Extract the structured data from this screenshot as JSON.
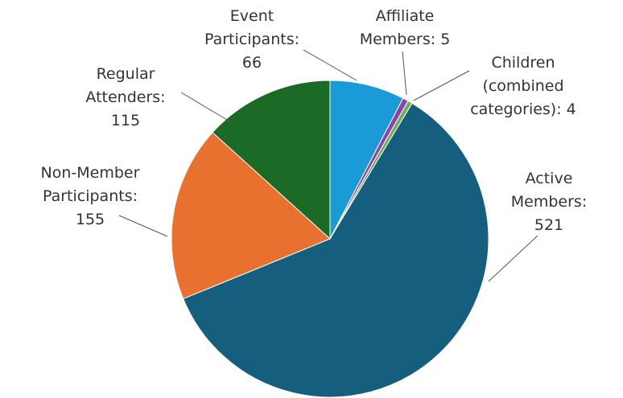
{
  "chart_data": {
    "type": "pie",
    "categories": [
      "Event Participants:",
      "Affiliate Members:",
      "Children (combined categories):",
      "Active Members:",
      "Non-Member Participants:",
      "Regular Attenders:"
    ],
    "values": [
      66,
      5,
      4,
      521,
      155,
      115
    ],
    "colors": [
      "#1a9ad6",
      "#8e3fb3",
      "#6ab04c",
      "#155e7e",
      "#e87130",
      "#1b6b27"
    ]
  }
}
